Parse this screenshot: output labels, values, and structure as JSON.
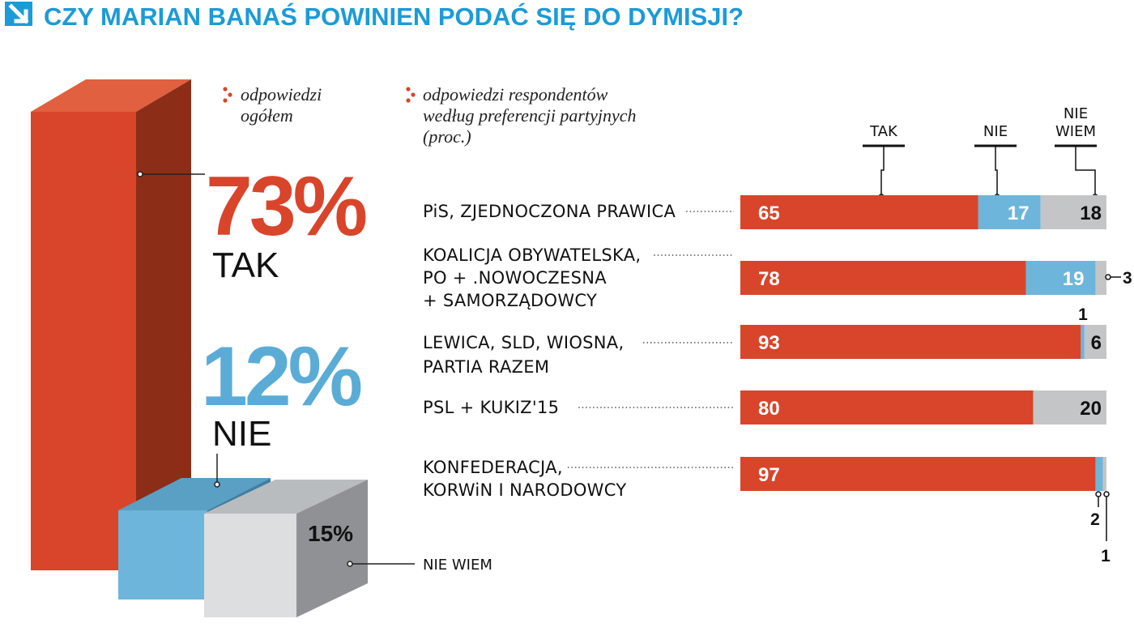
{
  "title": "CZY MARIAN BANAŚ POWINIEN PODAĆ SIĘ DO DYMISJI?",
  "colors": {
    "tak": "#d8452b",
    "nie": "#6db5da",
    "nie_wiem": "#c4c5c7",
    "title": "#1b9bd7"
  },
  "chart_data": [
    {
      "type": "bar",
      "title": "odpowiedzi ogółem",
      "categories": [
        "TAK",
        "NIE",
        "NIE WIEM"
      ],
      "values": [
        73,
        12,
        15
      ],
      "value_labels": [
        "73%",
        "12%",
        "15%"
      ],
      "ylim": [
        0,
        73
      ]
    },
    {
      "type": "bar",
      "stacked": true,
      "orientation": "horizontal",
      "title": "odpowiedzi respondentów według preferencji partyjnych (proc.)",
      "title_lines": [
        "odpowiedzi respondentów",
        "według preferencji partyjnych",
        "(proc.)"
      ],
      "series_headers": [
        [
          "TAK"
        ],
        [
          "NIE"
        ],
        [
          "NIE",
          "WIEM"
        ]
      ],
      "categories": [
        [
          "PiS, ZJEDNOCZONA PRAWICA"
        ],
        [
          "KOALICJA OBYWATELSKA,",
          "PO + .NOWOCZESNA",
          "+ SAMORZĄDOWCY"
        ],
        [
          "LEWICA, SLD, WIOSNA,",
          "PARTIA RAZEM"
        ],
        [
          "PSL + KUKIZ'15"
        ],
        [
          "KONFEDERACJA,",
          "KORWiN I NARODOWCY"
        ]
      ],
      "series": [
        {
          "name": "TAK",
          "values": [
            65,
            78,
            93,
            80,
            97
          ]
        },
        {
          "name": "NIE",
          "values": [
            17,
            19,
            1,
            0,
            2
          ]
        },
        {
          "name": "NIE WIEM",
          "values": [
            18,
            3,
            6,
            20,
            1
          ]
        }
      ],
      "xlim": [
        0,
        100
      ]
    }
  ],
  "overall_note": [
    "odpowiedzi",
    "ogółem"
  ],
  "overall_labels": {
    "tak": "TAK",
    "nie": "NIE",
    "nie_wiem": "NIE WIEM"
  }
}
